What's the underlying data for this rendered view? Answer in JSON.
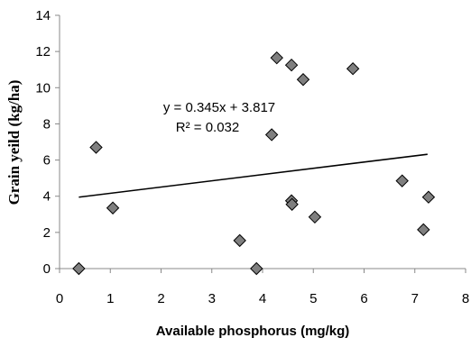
{
  "chart_data": {
    "type": "scatter",
    "xlabel": "Available phosphorus (mg/kg)",
    "ylabel": "Grain yeild (kg/ha)",
    "xlim": [
      0,
      8
    ],
    "ylim": [
      0,
      14
    ],
    "xticks": [
      "0",
      "1",
      "2",
      "3",
      "4",
      "5",
      "6",
      "7",
      "8"
    ],
    "yticks": [
      "0",
      "2",
      "4",
      "6",
      "8",
      "10",
      "12",
      "14"
    ],
    "grid": false,
    "legend": "none",
    "marker": "diamond",
    "marker_color": "#7f7f7f",
    "trendline": {
      "slope": 0.345,
      "intercept": 3.817,
      "x_range": [
        0.38,
        7.25
      ],
      "equation": "y = 0.345x + 3.817",
      "r2_label": "R² = 0.032"
    },
    "points": [
      {
        "x": 0.38,
        "y": 0.0
      },
      {
        "x": 0.72,
        "y": 6.7
      },
      {
        "x": 1.05,
        "y": 3.35
      },
      {
        "x": 3.55,
        "y": 1.55
      },
      {
        "x": 3.88,
        "y": 0.0
      },
      {
        "x": 4.18,
        "y": 7.4
      },
      {
        "x": 4.28,
        "y": 11.65
      },
      {
        "x": 4.57,
        "y": 11.25
      },
      {
        "x": 4.57,
        "y": 3.75
      },
      {
        "x": 4.58,
        "y": 3.55
      },
      {
        "x": 4.8,
        "y": 10.45
      },
      {
        "x": 5.03,
        "y": 2.85
      },
      {
        "x": 5.78,
        "y": 11.05
      },
      {
        "x": 6.75,
        "y": 4.85
      },
      {
        "x": 7.17,
        "y": 2.15
      },
      {
        "x": 7.27,
        "y": 3.95
      }
    ]
  }
}
